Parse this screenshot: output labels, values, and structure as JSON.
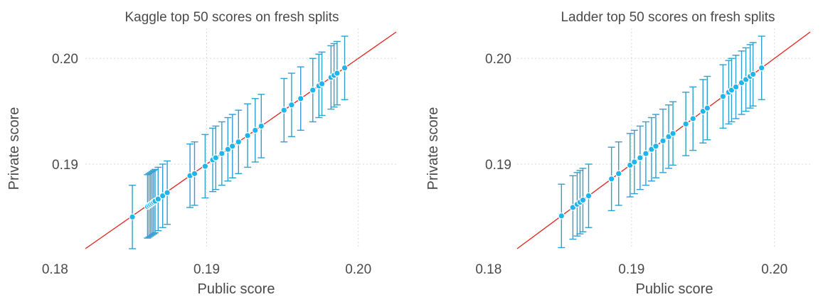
{
  "colors": {
    "points": "#1fb5ea",
    "error_bars": "#2f9fd0",
    "diagonal": "#e0201b",
    "grid": "#d9d9d9",
    "text": "#4a4a4a"
  },
  "chart_data": [
    {
      "type": "scatter",
      "title": "Kaggle top 50 scores on fresh splits",
      "xlabel": "Public score",
      "ylabel": "Private score",
      "xlim": [
        0.182,
        0.2025
      ],
      "ylim": [
        0.182,
        0.2025
      ],
      "xticks": [
        0.18,
        0.19,
        0.2
      ],
      "xtick_labels": [
        "0.18",
        "0.19",
        "0.20"
      ],
      "yticks": [
        0.19,
        0.2
      ],
      "ytick_labels": [
        "0.19",
        "0.20"
      ],
      "grid": true,
      "reference_line": "y = x",
      "error_bar_half_width": 0.003,
      "points": [
        [
          0.1851,
          0.185
        ],
        [
          0.1861,
          0.186
        ],
        [
          0.1862,
          0.1861
        ],
        [
          0.1863,
          0.1862
        ],
        [
          0.1864,
          0.1863
        ],
        [
          0.1865,
          0.1864
        ],
        [
          0.1866,
          0.1865
        ],
        [
          0.1868,
          0.1867
        ],
        [
          0.1871,
          0.187
        ],
        [
          0.1874,
          0.1873
        ],
        [
          0.1889,
          0.1889
        ],
        [
          0.1892,
          0.1891
        ],
        [
          0.1899,
          0.1898
        ],
        [
          0.1904,
          0.1904
        ],
        [
          0.1906,
          0.1906
        ],
        [
          0.191,
          0.191
        ],
        [
          0.1914,
          0.1914
        ],
        [
          0.1917,
          0.1917
        ],
        [
          0.1921,
          0.1921
        ],
        [
          0.1927,
          0.1927
        ],
        [
          0.1932,
          0.1932
        ],
        [
          0.1936,
          0.1936
        ],
        [
          0.1951,
          0.1951
        ],
        [
          0.1956,
          0.1956
        ],
        [
          0.1962,
          0.1962
        ],
        [
          0.197,
          0.197
        ],
        [
          0.1974,
          0.1974
        ],
        [
          0.1976,
          0.1976
        ],
        [
          0.1982,
          0.1982
        ],
        [
          0.1984,
          0.1984
        ],
        [
          0.1986,
          0.1986
        ],
        [
          0.1991,
          0.1991
        ]
      ]
    },
    {
      "type": "scatter",
      "title": "Ladder top 50 scores on fresh splits",
      "xlabel": "Public score",
      "ylabel": "Private score",
      "xlim": [
        0.182,
        0.2025
      ],
      "ylim": [
        0.182,
        0.2025
      ],
      "xticks": [
        0.18,
        0.19,
        0.2
      ],
      "xtick_labels": [
        "0.18",
        "0.19",
        "0.20"
      ],
      "yticks": [
        0.19,
        0.2
      ],
      "ytick_labels": [
        "0.19",
        "0.20"
      ],
      "grid": true,
      "reference_line": "y = x",
      "error_bar_half_width": 0.003,
      "points": [
        [
          0.1851,
          0.1851
        ],
        [
          0.1859,
          0.1859
        ],
        [
          0.1862,
          0.1862
        ],
        [
          0.1864,
          0.1864
        ],
        [
          0.1866,
          0.1866
        ],
        [
          0.187,
          0.187
        ],
        [
          0.1886,
          0.1886
        ],
        [
          0.1891,
          0.1891
        ],
        [
          0.1899,
          0.1899
        ],
        [
          0.1902,
          0.1902
        ],
        [
          0.1906,
          0.1906
        ],
        [
          0.191,
          0.191
        ],
        [
          0.1914,
          0.1914
        ],
        [
          0.1917,
          0.1917
        ],
        [
          0.1922,
          0.1922
        ],
        [
          0.1926,
          0.1926
        ],
        [
          0.1929,
          0.1929
        ],
        [
          0.1938,
          0.1938
        ],
        [
          0.1943,
          0.1943
        ],
        [
          0.195,
          0.195
        ],
        [
          0.1953,
          0.1953
        ],
        [
          0.1964,
          0.1964
        ],
        [
          0.1968,
          0.1968
        ],
        [
          0.197,
          0.197
        ],
        [
          0.1973,
          0.1973
        ],
        [
          0.1977,
          0.1977
        ],
        [
          0.198,
          0.198
        ],
        [
          0.1983,
          0.1983
        ],
        [
          0.1985,
          0.1985
        ],
        [
          0.1991,
          0.1991
        ]
      ]
    }
  ]
}
